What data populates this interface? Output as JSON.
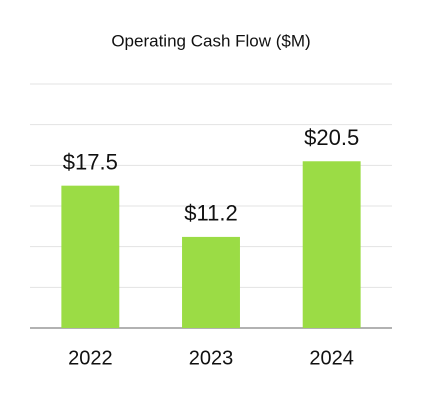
{
  "chart_data": {
    "type": "bar",
    "title": "Operating Cash Flow ($M)",
    "categories": [
      "2022",
      "2023",
      "2024"
    ],
    "values": [
      17.5,
      11.2,
      20.5
    ],
    "value_labels": [
      "$17.5",
      "$11.2",
      "$20.5"
    ],
    "color": "#9bdc45",
    "ylim": [
      0,
      30
    ],
    "yticks": [
      0,
      5,
      10,
      15,
      20,
      25,
      30
    ],
    "grid": true
  }
}
